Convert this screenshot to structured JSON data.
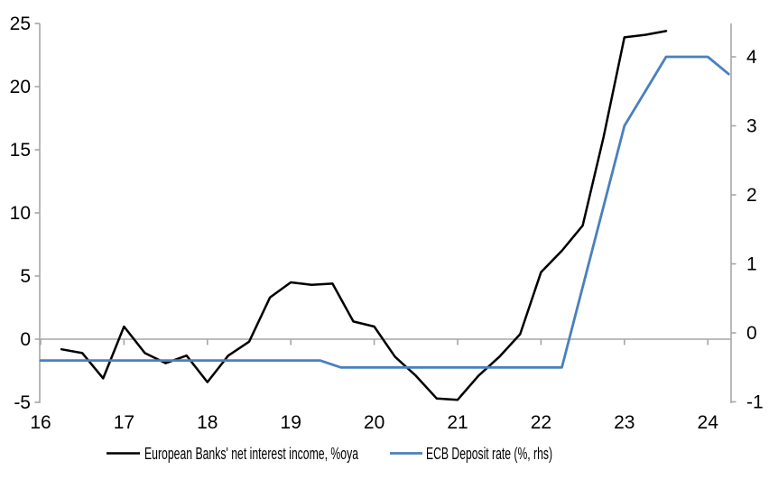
{
  "chart_data": {
    "type": "line",
    "title": "",
    "x_axis": {
      "tick_labels": [
        "16",
        "17",
        "18",
        "19",
        "20",
        "21",
        "22",
        "23",
        "24"
      ],
      "tick_values": [
        16,
        17,
        18,
        19,
        20,
        21,
        22,
        23,
        24
      ],
      "range": [
        16,
        24.3
      ]
    },
    "left_axis": {
      "tick_labels": [
        "-5",
        "0",
        "5",
        "10",
        "15",
        "20",
        "25"
      ],
      "tick_values": [
        -5,
        0,
        5,
        10,
        15,
        20,
        25
      ],
      "range": [
        -5,
        25
      ]
    },
    "right_axis": {
      "tick_labels": [
        "-1",
        "0",
        "1",
        "2",
        "3",
        "4"
      ],
      "tick_values": [
        -1,
        0,
        1,
        2,
        3,
        4
      ],
      "range": [
        -1,
        4.5
      ]
    },
    "grid": "zero-line-only",
    "legend_position": "bottom-center",
    "series": [
      {
        "name": "European Banks' net interest income, %oya",
        "axis": "left",
        "color": "#000000",
        "x": [
          16.25,
          16.5,
          16.75,
          17.0,
          17.25,
          17.5,
          17.75,
          18.0,
          18.25,
          18.5,
          18.75,
          19.0,
          19.25,
          19.5,
          19.75,
          20.0,
          20.25,
          20.5,
          20.75,
          21.0,
          21.25,
          21.5,
          21.75,
          22.0,
          22.25,
          22.5,
          22.75,
          23.0,
          23.25,
          23.5
        ],
        "values": [
          -0.8,
          -1.1,
          -3.1,
          1.0,
          -1.1,
          -1.9,
          -1.3,
          -3.4,
          -1.3,
          -0.2,
          3.3,
          4.5,
          4.3,
          4.4,
          1.4,
          1.0,
          -1.4,
          -2.9,
          -4.7,
          -4.8,
          -2.9,
          -1.4,
          0.4,
          5.3,
          7.0,
          9.0,
          16.0,
          23.9,
          24.1,
          24.4
        ]
      },
      {
        "name": "ECB Deposit rate (%, rhs)",
        "axis": "right",
        "color": "#4a80bd",
        "x": [
          16.0,
          19.35,
          19.6,
          22.25,
          23.0,
          23.5,
          24.0,
          24.25
        ],
        "values": [
          -0.4,
          -0.4,
          -0.5,
          -0.5,
          3.0,
          4.0,
          4.0,
          3.75
        ]
      }
    ],
    "colors": {
      "axis": "#a6a6a6",
      "zero_line": "#a6a6a6",
      "background": "#ffffff"
    }
  }
}
